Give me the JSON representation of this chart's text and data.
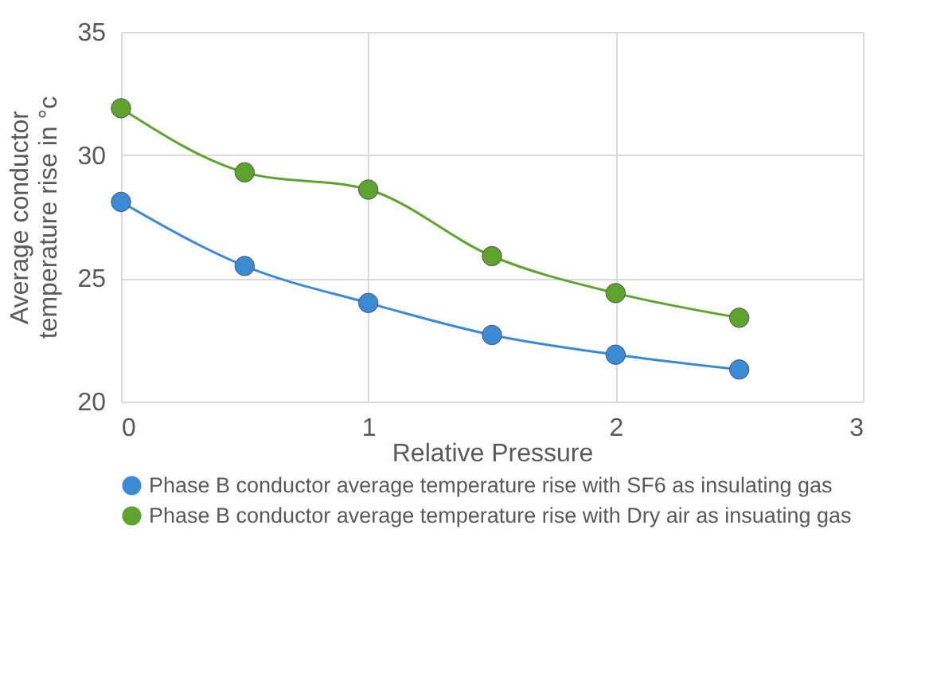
{
  "chart_data": {
    "type": "line",
    "xlabel": "Relative Pressure",
    "ylabel": "Average conductor temperature rise in °c",
    "x": [
      0,
      0.5,
      1,
      1.5,
      2,
      2.5
    ],
    "series": [
      {
        "name": "Phase B conductor average temperature rise with SF6 as insulating gas",
        "color": "#3a8ad6",
        "values": [
          28.1,
          25.5,
          24.0,
          22.7,
          21.9,
          21.3
        ]
      },
      {
        "name": "Phase B conductor average temperature rise with Dry air as insuating gas",
        "color": "#5ea32e",
        "values": [
          31.9,
          29.3,
          28.6,
          25.9,
          24.4,
          23.4
        ]
      }
    ],
    "xlim": [
      0,
      3
    ],
    "xticks": [
      0,
      1,
      2,
      3
    ],
    "ylim": [
      20,
      35
    ],
    "yticks": [
      20,
      25,
      30,
      35
    ],
    "grid": true,
    "legend": "bottom",
    "marker": "circle",
    "line_style": "solid"
  }
}
